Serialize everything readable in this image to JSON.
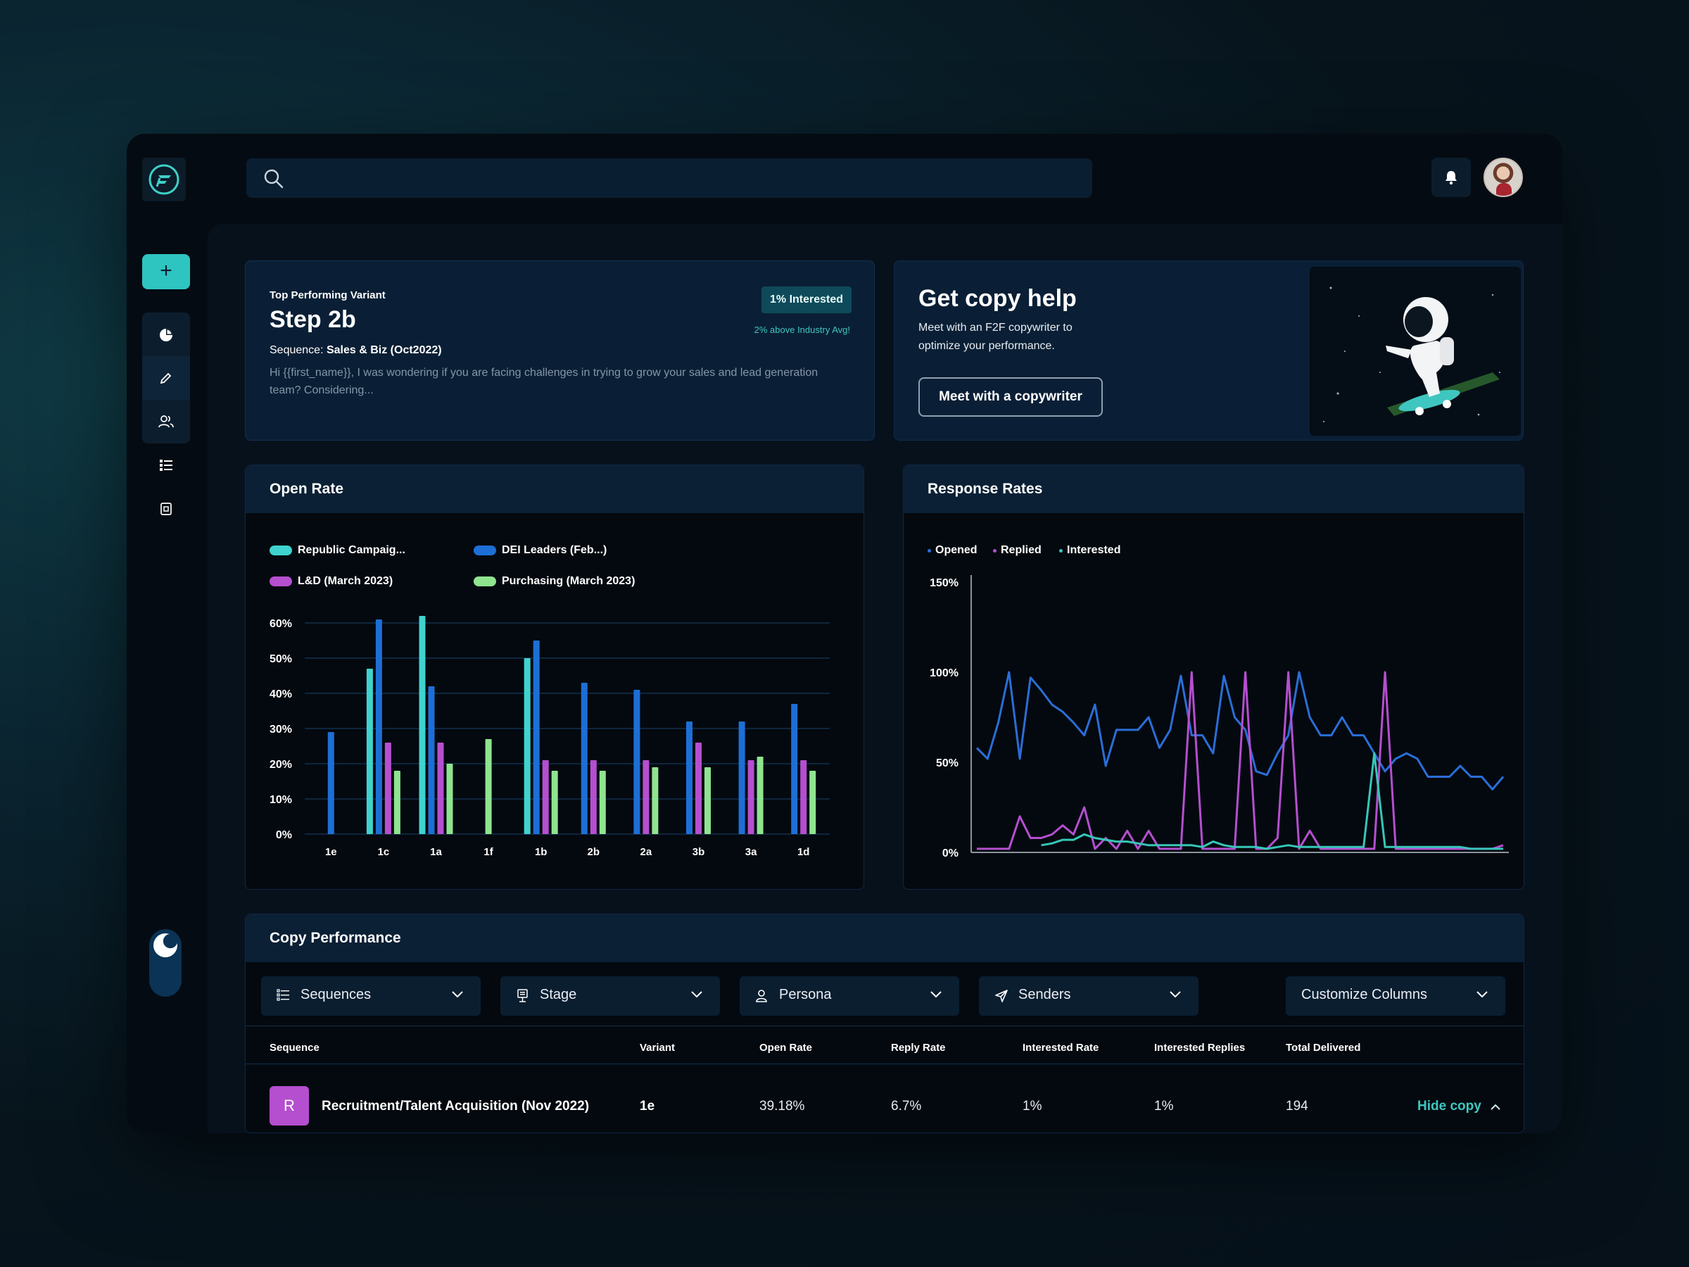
{
  "header": {
    "search_placeholder": ""
  },
  "top_variant": {
    "label": "Top Performing Variant",
    "step": "Step 2b",
    "badge": "1% Interested",
    "industry_note": "2% above Industry Avg!",
    "sequence_prefix": "Sequence:",
    "sequence_name": "Sales & Biz (Oct2022)",
    "preview": "Hi {{first_name}}, I was wondering if you are facing challenges in trying to grow your sales and lead generation team? Considering..."
  },
  "copy_help": {
    "title": "Get copy help",
    "description": "Meet with an F2F copywriter to optimize your performance.",
    "button": "Meet with a copywriter"
  },
  "open_rate": {
    "title": "Open Rate",
    "legend": [
      "Republic Campaig...",
      "DEI Leaders (Feb...)",
      "L&D (March 2023)",
      "Purchasing (March 2023)"
    ]
  },
  "response_rates": {
    "title": "Response Rates",
    "legend": [
      "Opened",
      "Replied",
      "Interested"
    ]
  },
  "chart_data": [
    {
      "type": "bar",
      "title": "Open Rate",
      "categories": [
        "1e",
        "1c",
        "1a",
        "1f",
        "1b",
        "2b",
        "2a",
        "3b",
        "3a",
        "1d"
      ],
      "series": [
        {
          "name": "Republic Campaig...",
          "color": "#3fd3cf",
          "values": [
            null,
            47,
            62,
            null,
            50,
            null,
            null,
            null,
            null,
            null
          ]
        },
        {
          "name": "DEI Leaders (Feb...)",
          "color": "#1d6fd6",
          "values": [
            29,
            61,
            42,
            null,
            55,
            43,
            41,
            32,
            32,
            37
          ]
        },
        {
          "name": "L&D (March 2023)",
          "color": "#b54fcf",
          "values": [
            null,
            26,
            26,
            null,
            21,
            21,
            21,
            26,
            21,
            21
          ]
        },
        {
          "name": "Purchasing (March 2023)",
          "color": "#8fe48f",
          "values": [
            null,
            18,
            20,
            27,
            18,
            18,
            19,
            19,
            22,
            18
          ]
        }
      ],
      "yticks": [
        "0%",
        "10%",
        "20%",
        "30%",
        "40%",
        "50%",
        "60%"
      ],
      "ylim": [
        0,
        60
      ]
    },
    {
      "type": "line",
      "title": "Response Rates",
      "yticks": [
        "0%",
        "50%",
        "100%",
        "150%"
      ],
      "ylim": [
        0,
        150
      ],
      "series": [
        {
          "name": "Opened",
          "color": "#2a6ed8",
          "values": [
            58,
            52,
            72,
            100,
            52,
            97,
            90,
            82,
            78,
            72,
            65,
            82,
            48,
            68,
            68,
            68,
            75,
            58,
            68,
            98,
            65,
            65,
            55,
            98,
            75,
            68,
            45,
            43,
            55,
            65,
            100,
            75,
            65,
            65,
            75,
            65,
            65,
            55,
            45,
            52,
            55,
            52,
            42,
            42,
            42,
            48,
            42,
            42,
            35,
            42
          ]
        },
        {
          "name": "Replied",
          "color": "#b54fcf",
          "values": [
            2,
            2,
            2,
            2,
            20,
            8,
            8,
            10,
            15,
            10,
            25,
            2,
            8,
            2,
            12,
            2,
            12,
            2,
            2,
            2,
            100,
            2,
            2,
            2,
            2,
            100,
            2,
            2,
            8,
            100,
            2,
            12,
            2,
            2,
            2,
            2,
            2,
            2,
            100,
            2,
            2,
            2,
            2,
            2,
            2,
            2,
            2,
            2,
            2,
            4
          ]
        },
        {
          "name": "Interested",
          "color": "#37c6b8",
          "values": [
            null,
            null,
            null,
            null,
            null,
            null,
            4,
            5,
            7,
            7,
            10,
            8,
            7,
            6,
            6,
            5,
            4,
            4,
            4,
            4,
            4,
            3,
            6,
            4,
            3,
            3,
            3,
            2,
            3,
            4,
            3,
            3,
            3,
            3,
            3,
            3,
            3,
            55,
            3,
            3,
            3,
            3,
            3,
            3,
            3,
            3,
            2,
            2,
            2,
            2
          ]
        }
      ]
    }
  ],
  "copy_performance": {
    "title": "Copy Performance",
    "filters": [
      "Sequences",
      "Stage",
      "Persona",
      "Senders"
    ],
    "customize": "Customize  Columns",
    "columns": [
      "Sequence",
      "Variant",
      "Open Rate",
      "Reply Rate",
      "Interested Rate",
      "Interested Replies",
      "Total Delivered"
    ],
    "rows": [
      {
        "initial": "R",
        "sequence": "Recruitment/Talent Acquisition (Nov 2022)",
        "variant": "1e",
        "open_rate": "39.18%",
        "reply_rate": "6.7%",
        "interested_rate": "1%",
        "interested_replies": "1%",
        "total_delivered": "194",
        "action": "Hide copy"
      }
    ]
  },
  "colors": {
    "accent": "#2ec4c0",
    "background": "#050b12",
    "panel": "#0a1f35",
    "row_badge": "#b54fcf"
  }
}
